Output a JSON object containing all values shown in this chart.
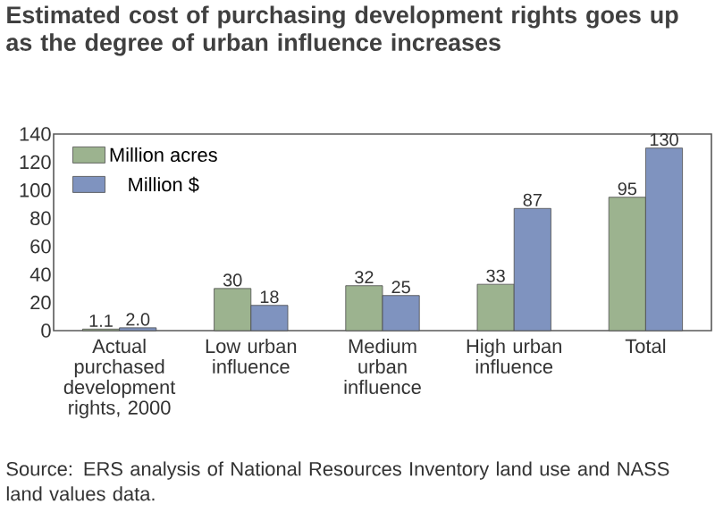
{
  "chart_data": {
    "type": "bar",
    "title": "Estimated cost of purchasing development rights goes up as the degree of urban influence increases",
    "categories": [
      "Actual purchased development rights, 2000",
      "Low urban influence",
      "Medium urban influence",
      "High urban influence",
      "Total"
    ],
    "series": [
      {
        "name": "Million acres",
        "color": "#9cb38f",
        "values": [
          1.1,
          30,
          32,
          33,
          95
        ],
        "value_labels": [
          "1.1",
          "30",
          "32",
          "33",
          "95"
        ]
      },
      {
        "name": "Million $",
        "color": "#7f93bf",
        "values": [
          2.0,
          18,
          25,
          87,
          130
        ],
        "value_labels": [
          "2.0",
          "18",
          "25",
          "87",
          "130"
        ]
      }
    ],
    "ylim": [
      0,
      140
    ],
    "yticks": [
      0,
      20,
      40,
      60,
      80,
      100,
      120,
      140
    ],
    "legend": "top left",
    "annotations": [
      "Source: ERS analysis of National Resources Inventory land use and NASS land values data."
    ]
  }
}
